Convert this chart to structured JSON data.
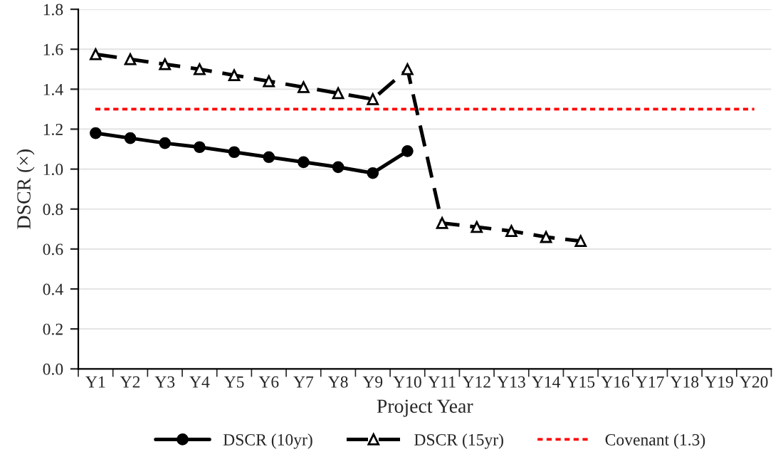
{
  "chart_data": {
    "type": "line",
    "xlabel": "Project Year",
    "ylabel": "DSCR (×)",
    "categories": [
      "Y1",
      "Y2",
      "Y3",
      "Y4",
      "Y5",
      "Y6",
      "Y7",
      "Y8",
      "Y9",
      "Y10",
      "Y11",
      "Y12",
      "Y13",
      "Y14",
      "Y15",
      "Y16",
      "Y17",
      "Y18",
      "Y19",
      "Y20"
    ],
    "series": [
      {
        "name": "DSCR (10yr)",
        "color": "#000000",
        "marker": "circle",
        "line_style": "solid",
        "values": [
          1.18,
          1.155,
          1.13,
          1.11,
          1.085,
          1.06,
          1.035,
          1.01,
          0.98,
          1.09,
          null,
          null,
          null,
          null,
          null,
          null,
          null,
          null,
          null,
          null
        ]
      },
      {
        "name": "DSCR (15yr)",
        "color": "#000000",
        "marker": "triangle",
        "line_style": "dashed",
        "values": [
          1.575,
          1.55,
          1.525,
          1.5,
          1.47,
          1.44,
          1.41,
          1.38,
          1.35,
          1.5,
          0.73,
          0.71,
          0.69,
          0.66,
          0.64,
          null,
          null,
          null,
          null,
          null
        ]
      }
    ],
    "ref_lines": [
      {
        "axis": "y",
        "value": 1.3,
        "label": "Covenant (1.3)",
        "color": "#ff0000",
        "line_style": "dotted"
      }
    ],
    "ylim": [
      0,
      1.8
    ],
    "yticks": [
      {
        "value": 0,
        "label": "0.0"
      },
      {
        "value": 0.2,
        "label": "0.2"
      },
      {
        "value": 0.4,
        "label": "0.4"
      },
      {
        "value": 0.6,
        "label": "0.6"
      },
      {
        "value": 0.8,
        "label": "0.8"
      },
      {
        "value": 1.0,
        "label": "1.0"
      },
      {
        "value": 1.2,
        "label": "1.2"
      },
      {
        "value": 1.4,
        "label": "1.4"
      },
      {
        "value": 1.6,
        "label": "1.6"
      },
      {
        "value": 1.8,
        "label": "1.8"
      }
    ],
    "grid": "y",
    "legend": "bottom"
  }
}
